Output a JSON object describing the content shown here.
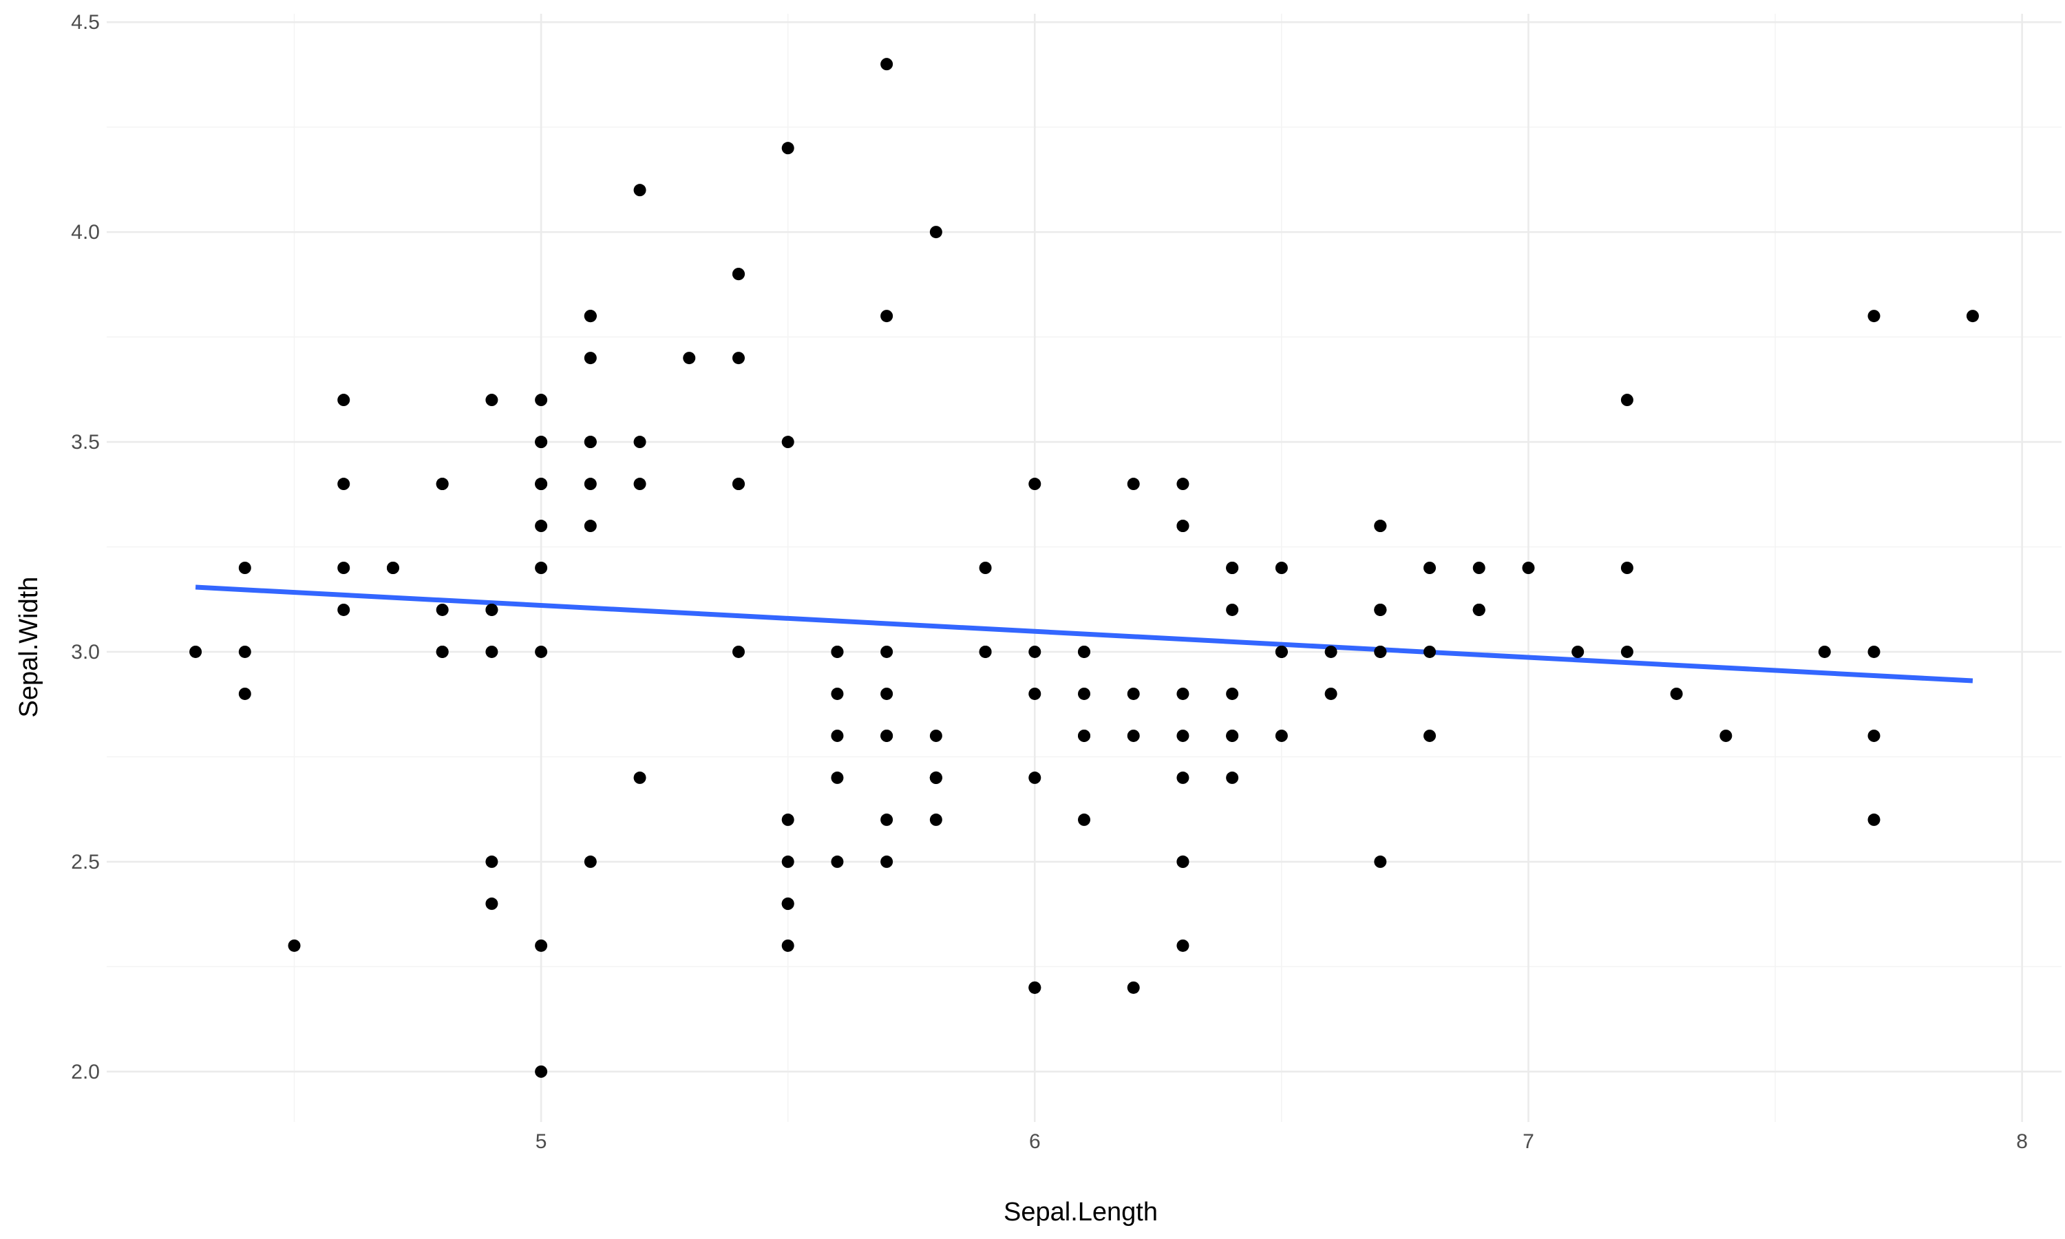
{
  "chart_data": {
    "type": "scatter",
    "title": "",
    "xlabel": "Sepal.Length",
    "ylabel": "Sepal.Width",
    "xlim": [
      4.12,
      8.08
    ],
    "ylim": [
      1.88,
      4.52
    ],
    "x_ticks": [
      5,
      6,
      7,
      8
    ],
    "x_tick_labels": [
      "5",
      "6",
      "7",
      "8"
    ],
    "y_ticks": [
      2.0,
      2.5,
      3.0,
      3.5,
      4.0,
      4.5
    ],
    "y_tick_labels": [
      "2.0",
      "2.5",
      "3.0",
      "3.5",
      "4.0",
      "4.5"
    ],
    "grid": true,
    "legend": "none",
    "colors": {
      "points": "#000000",
      "fit_line": "#3366ff",
      "grid": "#ebebeb"
    },
    "series": [
      {
        "x": [
          5.1,
          4.9,
          4.7,
          4.6,
          5.0,
          5.4,
          4.6,
          5.0,
          4.4,
          4.9,
          5.4,
          4.8,
          4.8,
          4.3,
          5.8,
          5.7,
          5.4,
          5.1,
          5.7,
          5.1,
          5.4,
          5.1,
          4.6,
          5.1,
          4.8,
          5.0,
          5.0,
          5.2,
          5.2,
          4.7,
          4.8,
          5.4,
          5.2,
          5.5,
          4.9,
          5.0,
          5.5,
          4.9,
          4.4,
          5.1,
          5.0,
          4.5,
          4.4,
          5.0,
          5.1,
          4.8,
          5.1,
          4.6,
          5.3,
          5.0,
          7.0,
          6.4,
          6.9,
          5.5,
          6.5,
          5.7,
          6.3,
          4.9,
          6.6,
          5.2,
          5.0,
          5.9,
          6.0,
          6.1,
          5.6,
          6.7,
          5.6,
          5.8,
          6.2,
          5.6,
          5.9,
          6.1,
          6.3,
          6.1,
          6.4,
          6.6,
          6.8,
          6.7,
          6.0,
          5.7,
          5.5,
          5.5,
          5.8,
          6.0,
          5.4,
          6.0,
          6.7,
          6.3,
          5.6,
          5.5,
          5.5,
          6.1,
          5.8,
          5.0,
          5.6,
          5.7,
          5.7,
          6.2,
          5.1,
          5.7,
          6.3,
          5.8,
          7.1,
          6.3,
          6.5,
          7.6,
          4.9,
          7.3,
          6.7,
          7.2,
          6.5,
          6.4,
          6.8,
          5.7,
          5.8,
          6.4,
          6.5,
          7.7,
          7.7,
          6.0,
          6.9,
          5.6,
          7.7,
          6.3,
          6.7,
          7.2,
          6.2,
          6.1,
          6.4,
          7.2,
          7.4,
          7.9,
          6.4,
          6.3,
          6.1,
          7.7,
          6.3,
          6.4,
          6.0,
          6.9,
          6.7,
          6.9,
          5.8,
          6.8,
          6.7,
          6.7,
          6.3,
          6.5,
          6.2,
          5.9
        ],
        "y": [
          3.5,
          3.0,
          3.2,
          3.1,
          3.6,
          3.9,
          3.4,
          3.4,
          2.9,
          3.1,
          3.7,
          3.4,
          3.0,
          3.0,
          4.0,
          4.4,
          3.9,
          3.5,
          3.8,
          3.8,
          3.4,
          3.7,
          3.6,
          3.3,
          3.4,
          3.0,
          3.4,
          3.5,
          3.4,
          3.2,
          3.1,
          3.4,
          4.1,
          4.2,
          3.1,
          3.2,
          3.5,
          3.6,
          3.0,
          3.4,
          3.5,
          2.3,
          3.2,
          3.5,
          3.8,
          3.0,
          3.8,
          3.2,
          3.7,
          3.3,
          3.2,
          3.2,
          3.1,
          2.3,
          2.8,
          2.8,
          3.3,
          2.4,
          2.9,
          2.7,
          2.0,
          3.0,
          2.2,
          2.9,
          2.9,
          3.1,
          3.0,
          2.7,
          2.2,
          2.5,
          3.2,
          2.8,
          2.5,
          2.8,
          2.9,
          3.0,
          2.8,
          3.0,
          2.9,
          2.6,
          2.4,
          2.4,
          2.7,
          2.7,
          3.0,
          3.4,
          3.1,
          2.3,
          3.0,
          2.5,
          2.6,
          3.0,
          2.6,
          2.3,
          2.7,
          3.0,
          2.9,
          2.9,
          2.5,
          2.8,
          3.3,
          2.7,
          3.0,
          2.9,
          3.0,
          3.0,
          2.5,
          2.9,
          2.5,
          3.6,
          3.2,
          2.7,
          3.0,
          2.5,
          2.8,
          3.2,
          3.0,
          3.8,
          2.6,
          2.2,
          3.2,
          2.8,
          2.8,
          2.7,
          3.3,
          3.2,
          2.8,
          3.0,
          2.8,
          3.0,
          2.8,
          3.8,
          2.8,
          2.8,
          2.6,
          3.0,
          3.4,
          3.1,
          3.0,
          3.1,
          3.1,
          3.1,
          2.7,
          3.2,
          3.3,
          3.0,
          2.5,
          3.0,
          3.4,
          3.0
        ]
      }
    ],
    "fit_line": {
      "x": [
        4.3,
        7.9
      ],
      "y": [
        3.154,
        2.931
      ]
    }
  }
}
